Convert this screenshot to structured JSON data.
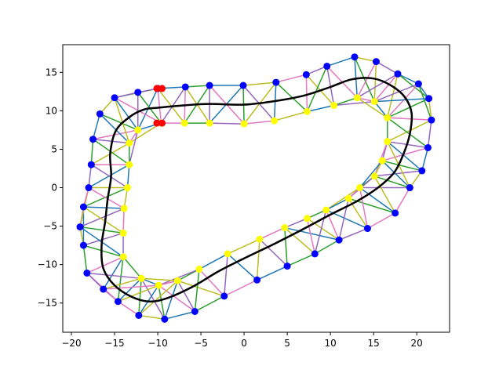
{
  "chart_data": {
    "type": "scatter",
    "title": "",
    "xlabel": "",
    "ylabel": "",
    "xlim": [
      -21,
      23.8
    ],
    "ylim": [
      -18.8,
      18.6
    ],
    "grid": false,
    "legend": "none",
    "x_ticks": [
      -20,
      -15,
      -10,
      -5,
      0,
      5,
      10,
      15,
      20
    ],
    "y_ticks": [
      -15,
      -10,
      -5,
      0,
      5,
      10,
      15
    ],
    "x_tick_labels": [
      "−20",
      "−15",
      "−10",
      "−5",
      "0",
      "5",
      "10",
      "15",
      "20"
    ],
    "y_tick_labels": [
      "−15",
      "−10",
      "−5",
      "0",
      "5",
      "10",
      "15"
    ],
    "colors": {
      "outer_points": "#0000ff",
      "inner_points": "#ffff00",
      "start_points": "#ff0000",
      "path": "#000000",
      "edge_palette": [
        "#1f77b4",
        "#2ca02c",
        "#9467bd",
        "#e377c2",
        "#bcbd22"
      ]
    },
    "series": [
      {
        "role": "outer boundary points",
        "color": "#0000ff",
        "points": [
          [
            -10.0,
            12.9
          ],
          [
            -6.8,
            13.1
          ],
          [
            -4.0,
            13.3
          ],
          [
            -0.1,
            13.3
          ],
          [
            3.7,
            13.7
          ],
          [
            7.2,
            14.7
          ],
          [
            9.6,
            15.8
          ],
          [
            12.8,
            17.0
          ],
          [
            15.3,
            16.4
          ],
          [
            17.8,
            14.8
          ],
          [
            20.2,
            13.5
          ],
          [
            21.4,
            11.6
          ],
          [
            21.7,
            8.8
          ],
          [
            21.3,
            5.2
          ],
          [
            20.6,
            2.2
          ],
          [
            19.2,
            0.0
          ],
          [
            17.5,
            -3.3
          ],
          [
            14.3,
            -5.3
          ],
          [
            11.0,
            -6.8
          ],
          [
            8.2,
            -8.6
          ],
          [
            5.0,
            -10.2
          ],
          [
            1.5,
            -12.0
          ],
          [
            -2.3,
            -14.1
          ],
          [
            -5.7,
            -16.1
          ],
          [
            -9.2,
            -17.1
          ],
          [
            -12.2,
            -16.6
          ],
          [
            -14.6,
            -14.8
          ],
          [
            -16.3,
            -13.2
          ],
          [
            -18.2,
            -11.1
          ],
          [
            -18.6,
            -7.5
          ],
          [
            -19.0,
            -5.1
          ],
          [
            -18.6,
            -2.5
          ],
          [
            -18.0,
            0.0
          ],
          [
            -17.7,
            3.0
          ],
          [
            -17.5,
            6.3
          ],
          [
            -16.7,
            9.6
          ],
          [
            -15.0,
            11.7
          ],
          [
            -12.3,
            12.4
          ]
        ]
      },
      {
        "role": "inner boundary points",
        "color": "#ffff00",
        "points": [
          [
            -9.6,
            8.4
          ],
          [
            -6.9,
            8.4
          ],
          [
            -4.0,
            8.4
          ],
          [
            0.0,
            8.3
          ],
          [
            3.5,
            8.7
          ],
          [
            7.3,
            9.9
          ],
          [
            10.4,
            10.7
          ],
          [
            13.1,
            11.7
          ],
          [
            15.1,
            11.2
          ],
          [
            16.6,
            9.1
          ],
          [
            16.6,
            6.0
          ],
          [
            16.0,
            3.5
          ],
          [
            15.1,
            1.5
          ],
          [
            13.4,
            0.0
          ],
          [
            12.1,
            -1.4
          ],
          [
            9.5,
            -2.9
          ],
          [
            7.3,
            -4.0
          ],
          [
            4.7,
            -5.2
          ],
          [
            1.8,
            -6.7
          ],
          [
            -1.9,
            -8.6
          ],
          [
            -5.2,
            -10.6
          ],
          [
            -7.7,
            -12.1
          ],
          [
            -9.9,
            -12.7
          ],
          [
            -11.9,
            -11.8
          ],
          [
            -14.0,
            -9.0
          ],
          [
            -14.0,
            -5.9
          ],
          [
            -13.9,
            -2.7
          ],
          [
            -13.5,
            0.0
          ],
          [
            -13.3,
            3.0
          ],
          [
            -13.3,
            5.8
          ],
          [
            -12.3,
            7.5
          ]
        ]
      },
      {
        "role": "start markers",
        "color": "#ff0000",
        "points": [
          [
            -10.1,
            12.9
          ],
          [
            -9.5,
            12.9
          ],
          [
            -10.1,
            8.4
          ],
          [
            -9.5,
            8.4
          ]
        ]
      },
      {
        "role": "trajectory",
        "color": "#000000",
        "points": [
          [
            -10.0,
            10.4
          ],
          [
            -7.0,
            10.7
          ],
          [
            -4.0,
            10.9
          ],
          [
            0.0,
            10.8
          ],
          [
            3.8,
            11.3
          ],
          [
            7.0,
            12.0
          ],
          [
            10.0,
            13.1
          ],
          [
            12.5,
            14.1
          ],
          [
            15.0,
            14.2
          ],
          [
            17.0,
            13.3
          ],
          [
            18.6,
            11.8
          ],
          [
            19.4,
            9.7
          ],
          [
            19.2,
            7.0
          ],
          [
            18.5,
            4.5
          ],
          [
            17.4,
            2.0
          ],
          [
            15.5,
            0.0
          ],
          [
            13.0,
            -1.8
          ],
          [
            10.0,
            -3.5
          ],
          [
            7.0,
            -5.3
          ],
          [
            3.5,
            -7.3
          ],
          [
            0.0,
            -9.2
          ],
          [
            -3.0,
            -10.9
          ],
          [
            -6.0,
            -12.9
          ],
          [
            -9.0,
            -14.4
          ],
          [
            -11.0,
            -14.8
          ],
          [
            -13.0,
            -14.2
          ],
          [
            -15.0,
            -12.7
          ],
          [
            -16.3,
            -10.5
          ],
          [
            -16.5,
            -7.5
          ],
          [
            -16.1,
            -4.5
          ],
          [
            -15.8,
            -1.5
          ],
          [
            -15.4,
            1.5
          ],
          [
            -15.5,
            4.5
          ],
          [
            -14.8,
            7.5
          ],
          [
            -13.0,
            9.4
          ],
          [
            -11.5,
            10.2
          ]
        ]
      }
    ]
  }
}
